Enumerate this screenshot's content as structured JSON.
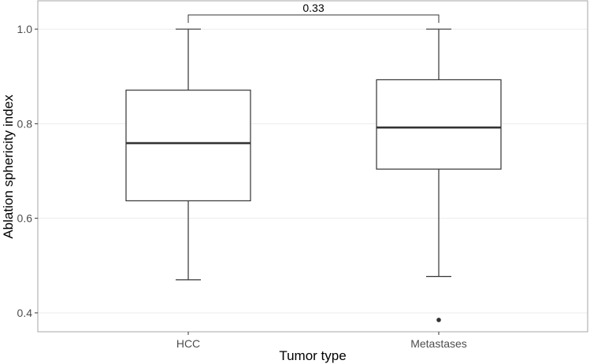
{
  "chart_data": {
    "type": "box",
    "title": "",
    "xlabel": "Tumor type",
    "ylabel": "Ablation sphericity index",
    "categories": [
      "HCC",
      "Metastases"
    ],
    "ylim": [
      0.36,
      1.06
    ],
    "yticks": [
      0.4,
      0.6,
      0.8,
      1.0
    ],
    "ytick_labels": [
      "0.4",
      "0.6",
      "0.8",
      "1.0"
    ],
    "grid": true,
    "legend": "none",
    "boxes": [
      {
        "name": "HCC",
        "min": 0.47,
        "q1": 0.637,
        "median": 0.759,
        "q3": 0.871,
        "max": 1.0,
        "outliers": []
      },
      {
        "name": "Metastases",
        "min": 0.477,
        "q1": 0.704,
        "median": 0.792,
        "q3": 0.893,
        "max": 1.0,
        "outliers": [
          0.385
        ]
      }
    ],
    "comparison": {
      "between": [
        "HCC",
        "Metastases"
      ],
      "label": "0.33",
      "y": 1.03
    },
    "colors": {
      "box_line": "#333333",
      "grid": "#ebebeb",
      "panel_border": "#a6a6a6"
    }
  }
}
